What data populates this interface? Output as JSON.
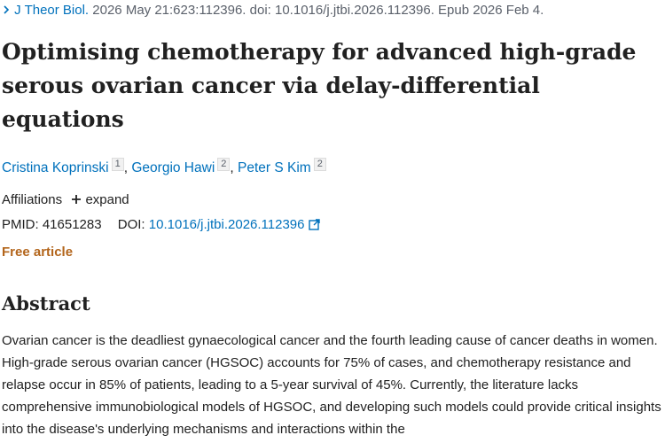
{
  "citation": {
    "journal": "J Theor Biol.",
    "details": "2026 May 21:623:112396. doi: 10.1016/j.jtbi.2026.112396. Epub 2026 Feb 4."
  },
  "title": "Optimising chemotherapy for advanced high-grade serous ovarian cancer via delay-differential equations",
  "authors": [
    {
      "name": "Cristina Koprinski",
      "affiliation": "1",
      "separator": ","
    },
    {
      "name": "Georgio Hawi",
      "affiliation": "2",
      "separator": ","
    },
    {
      "name": "Peter S Kim",
      "affiliation": "2"
    }
  ],
  "affiliations": {
    "label": "Affiliations",
    "expand": "expand"
  },
  "identifiers": {
    "pmid_label": "PMID:",
    "pmid": "41651283",
    "doi_label": "DOI:",
    "doi": "10.1016/j.jtbi.2026.112396"
  },
  "access": "Free article",
  "abstract": {
    "heading": "Abstract",
    "text": "Ovarian cancer is the deadliest gynaecological cancer and the fourth leading cause of cancer deaths in women. High-grade serous ovarian cancer (HGSOC) accounts for 75% of cases, and chemotherapy resistance and relapse occur in 85% of patients, leading to a 5-year survival of 45%. Currently, the literature lacks comprehensive immunobiological models of HGSOC, and developing such models could provide critical insights into the disease's underlying mechanisms and interactions within the"
  }
}
